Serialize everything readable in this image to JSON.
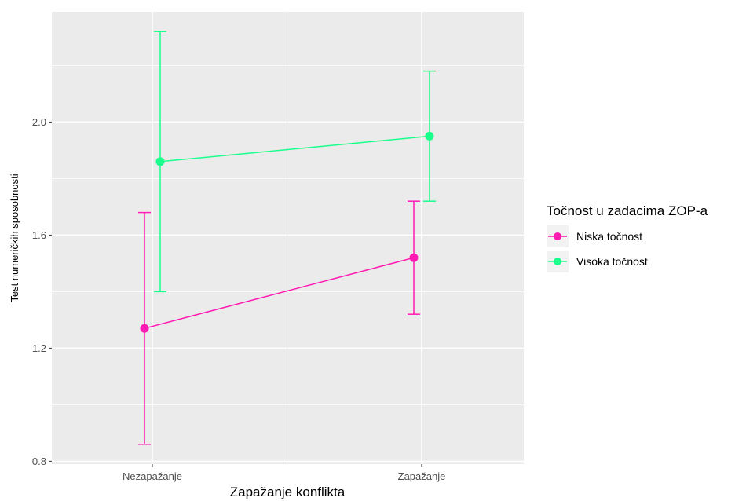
{
  "chart_data": {
    "type": "line",
    "title": "",
    "xlabel": "Zapažanje konflikta",
    "ylabel": "Test numeričkih sposobnosti",
    "categories": [
      "Nezapažanje",
      "Zapažanje"
    ],
    "ylim": [
      0.79,
      2.39
    ],
    "yticks": [
      0.8,
      1.2,
      1.6,
      2.0
    ],
    "ytick_labels": [
      "0.8",
      "1.2",
      "1.6",
      "2.0"
    ],
    "grid": true,
    "legend_position": "right",
    "legend_title": "Točnost u zadacima ZOP-a",
    "series": [
      {
        "name": "Niska točnost",
        "color": "#FF1AB2",
        "values": [
          1.27,
          1.52
        ],
        "err_low": [
          0.86,
          1.32
        ],
        "err_high": [
          1.68,
          1.72
        ]
      },
      {
        "name": "Visoka točnost",
        "color": "#1AFF8C",
        "values": [
          1.86,
          1.95
        ],
        "err_low": [
          1.4,
          1.72
        ],
        "err_high": [
          2.32,
          2.18
        ]
      }
    ]
  }
}
